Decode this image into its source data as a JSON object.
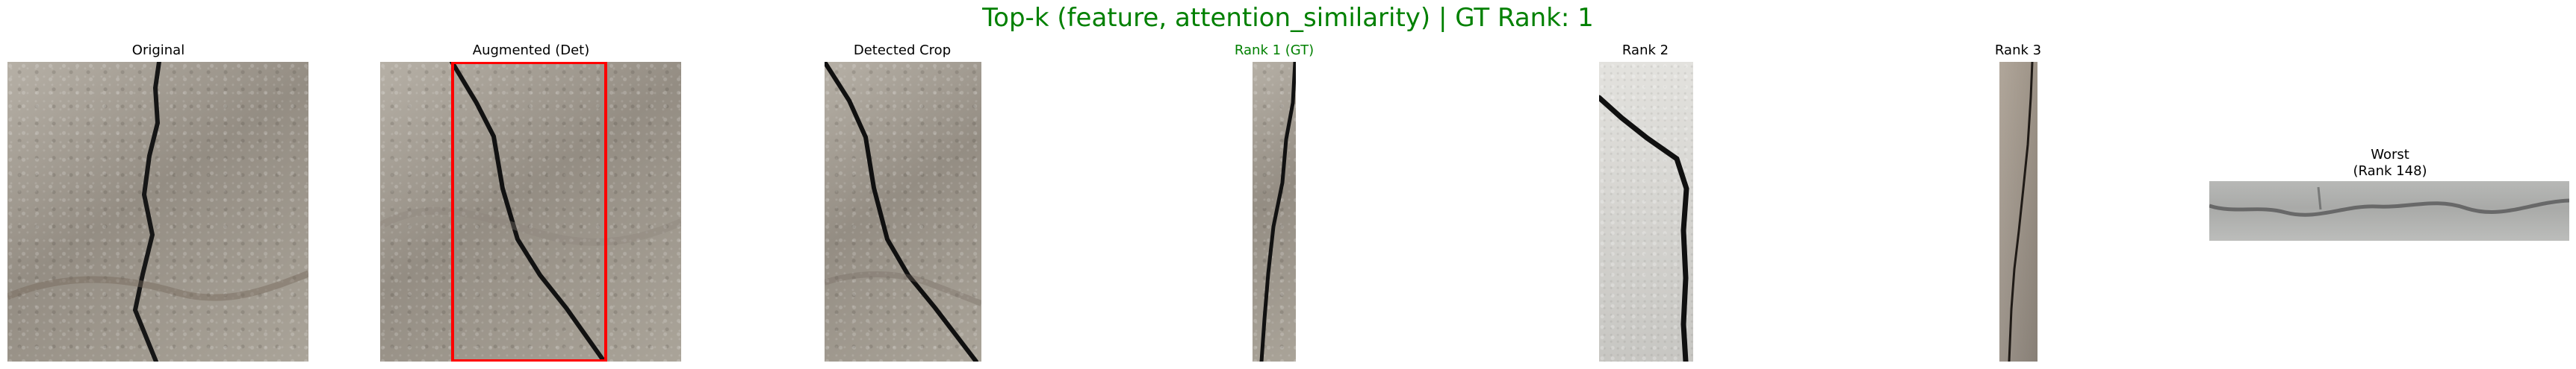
{
  "figure": {
    "title": "Top-k (feature, attention_similarity) | GT Rank: 1",
    "title_color": "#008000",
    "detection_box_color": "#ff0000",
    "panels": [
      {
        "title": "Original",
        "title_color": "#000000"
      },
      {
        "title": "Augmented (Det)",
        "title_color": "#000000"
      },
      {
        "title": "Detected Crop",
        "title_color": "#000000"
      },
      {
        "title": "Rank 1 (GT)",
        "title_color": "#008000"
      },
      {
        "title": "Rank 2",
        "title_color": "#000000"
      },
      {
        "title": "Rank 3",
        "title_color": "#000000"
      },
      {
        "title": "Worst\n(Rank 148)",
        "title_color": "#000000"
      }
    ]
  }
}
